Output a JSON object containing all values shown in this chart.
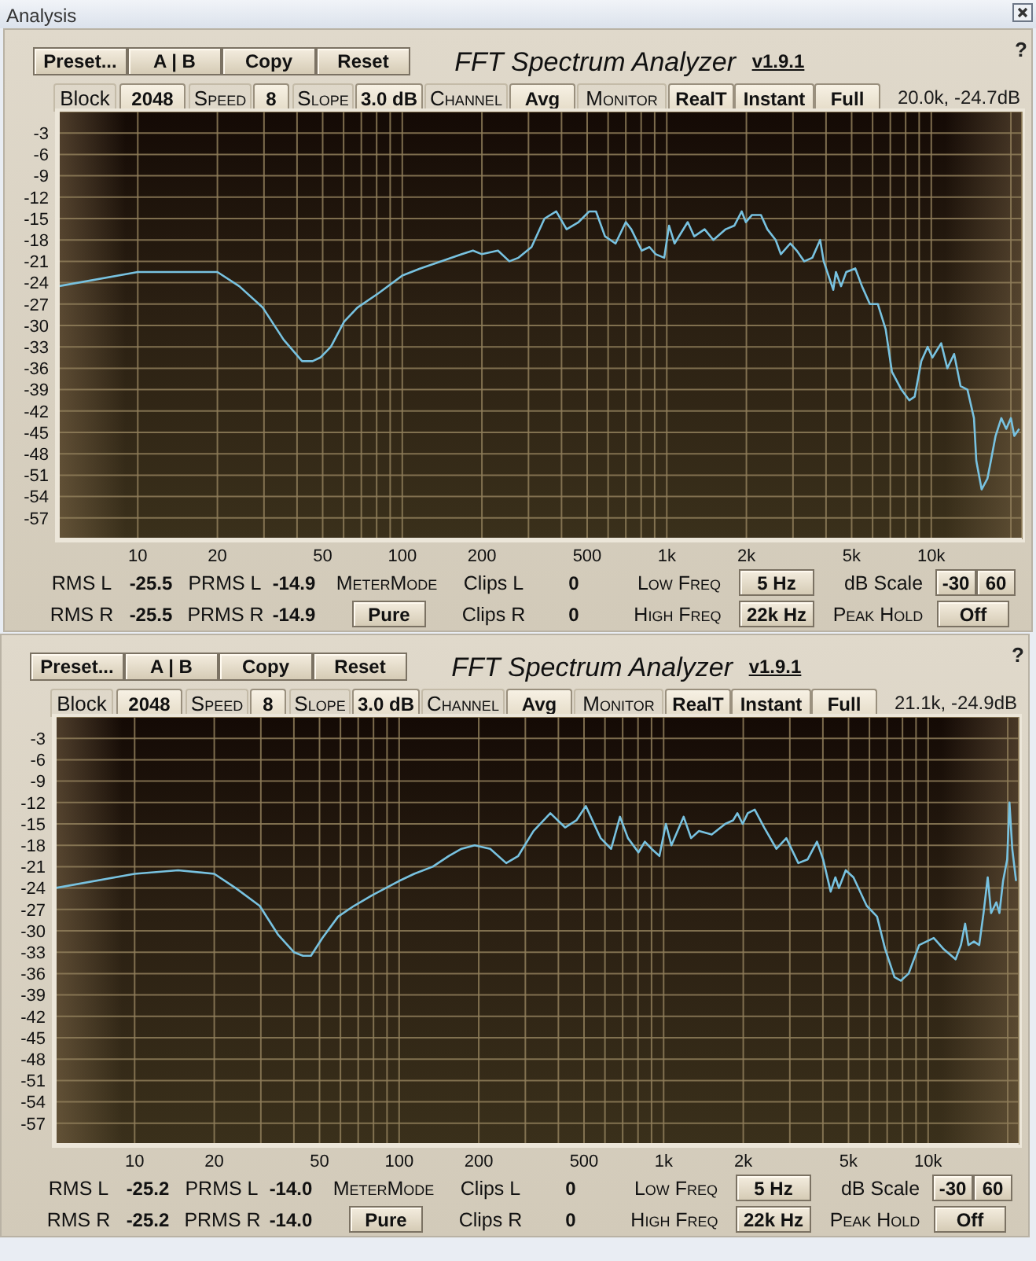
{
  "chart_data": [
    {
      "type": "line",
      "title": "FFT Spectrum Analyzer",
      "color": "#78c2e0",
      "log": "x",
      "grid": true,
      "xlim": [
        5,
        22000
      ],
      "ylim": [
        -60,
        0
      ],
      "xticks": [
        10,
        20,
        {
          "value": 30,
          "label": null
        },
        {
          "value": 40,
          "label": null
        },
        50,
        {
          "value": 60,
          "label": null
        },
        {
          "value": 70,
          "label": null
        },
        {
          "value": 80,
          "label": null
        },
        {
          "value": 90,
          "label": null
        },
        100,
        200,
        {
          "value": 300,
          "label": null
        },
        {
          "value": 400,
          "label": null
        },
        500,
        {
          "value": 600,
          "label": null
        },
        {
          "value": 700,
          "label": null
        },
        {
          "value": 800,
          "label": null
        },
        {
          "value": 900,
          "label": null
        },
        {
          "value": 1000,
          "label": "1k"
        },
        {
          "value": 2000,
          "label": "2k"
        },
        {
          "value": 3000,
          "label": null
        },
        {
          "value": 4000,
          "label": null
        },
        {
          "value": 5000,
          "label": "5k"
        },
        {
          "value": 6000,
          "label": null
        },
        {
          "value": 7000,
          "label": null
        },
        {
          "value": 8000,
          "label": null
        },
        {
          "value": 9000,
          "label": null
        },
        {
          "value": 10000,
          "label": "10k"
        },
        {
          "value": 20000,
          "label": null
        }
      ],
      "yticks": [
        -3,
        -6,
        -9,
        -12,
        -15,
        -18,
        -21,
        -24,
        -27,
        -30,
        -33,
        -36,
        -39,
        -42,
        -45,
        -48,
        -51,
        -54,
        -57
      ],
      "x": [
        5,
        10,
        14.3,
        20,
        24.2,
        29.7,
        35.6,
        41.8,
        45.8,
        49,
        53.7,
        60.2,
        67.6,
        81.1,
        100,
        117,
        140,
        168,
        185,
        200,
        230,
        254,
        275,
        308,
        345,
        382,
        418,
        464,
        509,
        540,
        584,
        640,
        700,
        734,
        804,
        860,
        908,
        978,
        1020,
        1070,
        1200,
        1270,
        1390,
        1500,
        1670,
        1800,
        1920,
        1990,
        2100,
        2270,
        2400,
        2580,
        2700,
        2930,
        3100,
        3310,
        3550,
        3800,
        3920,
        4260,
        4360,
        4560,
        4770,
        5160,
        5470,
        5860,
        6280,
        6720,
        7100,
        7710,
        8260,
        8650,
        9170,
        9690,
        10100,
        10900,
        11500,
        12200,
        12900,
        13700,
        14500,
        14800,
        15500,
        16300,
        16800,
        17500,
        18400,
        19200,
        20000,
        20600,
        21500
      ],
      "values": [
        -24.5,
        -22.5,
        -22.5,
        -22.5,
        -24.5,
        -27.5,
        -32,
        -35,
        -35,
        -34.5,
        -33,
        -29.5,
        -27.5,
        -25.5,
        -23,
        -22,
        -21,
        -20,
        -19.5,
        -20,
        -19.5,
        -21,
        -20.5,
        -19,
        -15,
        -14,
        -16.5,
        -15.5,
        -14,
        -14,
        -17.5,
        -18.5,
        -15.5,
        -16.5,
        -19.5,
        -19,
        -20,
        -20.5,
        -16,
        -18.5,
        -15.5,
        -17.5,
        -16.5,
        -18,
        -16.5,
        -16,
        -14,
        -15.5,
        -14.5,
        -14.5,
        -16.5,
        -18,
        -20,
        -18.5,
        -19.5,
        -21,
        -20.5,
        -18,
        -21,
        -25,
        -22.5,
        -24.5,
        -22.5,
        -22,
        -24.5,
        -27,
        -27,
        -30.5,
        -36.5,
        -39,
        -40.5,
        -40,
        -35,
        -33,
        -34.5,
        -32.5,
        -36,
        -34,
        -38.5,
        -39,
        -43,
        -49,
        -53,
        -51.5,
        -49,
        -45.5,
        -43,
        -44.5,
        -43,
        -45.5,
        -44.5
      ],
      "annotations": [
        "Preset...",
        "A | B",
        "Copy",
        "Reset",
        "v1.9.1",
        "?",
        "Block",
        "2048",
        "Speed",
        "8",
        "Slope",
        "3.0 dB",
        "Channel",
        "Avg",
        "Monitor",
        "RealT",
        "Instant",
        "Full",
        "20.0k, -24.7dB",
        "RMS L",
        "-25.5",
        "PRMS L",
        "-14.9",
        "MeterMode",
        "Clips L",
        "0",
        "Low Freq",
        "5 Hz",
        "dB Scale",
        "-30",
        "60",
        "RMS R",
        "-25.5",
        "PRMS R",
        "-14.9",
        "Pure",
        "Clips R",
        "0",
        "High Freq",
        "22k Hz",
        "Peak Hold",
        "Off",
        "Analysis"
      ]
    },
    {
      "type": "line",
      "title": "FFT Spectrum Analyzer",
      "color": "#78c2e0",
      "log": "x",
      "grid": true,
      "xlim": [
        5,
        22000
      ],
      "ylim": [
        -60,
        0
      ],
      "xticks": [
        10,
        20,
        {
          "value": 30,
          "label": null
        },
        {
          "value": 40,
          "label": null
        },
        50,
        {
          "value": 60,
          "label": null
        },
        {
          "value": 70,
          "label": null
        },
        {
          "value": 80,
          "label": null
        },
        {
          "value": 90,
          "label": null
        },
        100,
        200,
        {
          "value": 300,
          "label": null
        },
        {
          "value": 400,
          "label": null
        },
        500,
        {
          "value": 600,
          "label": null
        },
        {
          "value": 700,
          "label": null
        },
        {
          "value": 800,
          "label": null
        },
        {
          "value": 900,
          "label": null
        },
        {
          "value": 1000,
          "label": "1k"
        },
        {
          "value": 2000,
          "label": "2k"
        },
        {
          "value": 3000,
          "label": null
        },
        {
          "value": 4000,
          "label": null
        },
        {
          "value": 5000,
          "label": "5k"
        },
        {
          "value": 6000,
          "label": null
        },
        {
          "value": 7000,
          "label": null
        },
        {
          "value": 8000,
          "label": null
        },
        {
          "value": 9000,
          "label": null
        },
        {
          "value": 10000,
          "label": "10k"
        },
        {
          "value": 20000,
          "label": null
        }
      ],
      "yticks": [
        -3,
        -6,
        -9,
        -12,
        -15,
        -18,
        -21,
        -24,
        -27,
        -30,
        -33,
        -36,
        -39,
        -42,
        -45,
        -48,
        -51,
        -54,
        -57
      ],
      "x": [
        5,
        10,
        14.6,
        20,
        24.1,
        29.7,
        34.8,
        40,
        43.3,
        46.4,
        51.3,
        58.8,
        67.5,
        79.2,
        100,
        114,
        134,
        154,
        172,
        193,
        221,
        254,
        282,
        322,
        373,
        424,
        468,
        508,
        578,
        633,
        684,
        733,
        803,
        849,
        900,
        964,
        1020,
        1070,
        1190,
        1270,
        1360,
        1520,
        1710,
        1830,
        1900,
        1990,
        2080,
        2210,
        2400,
        2670,
        2910,
        3230,
        3500,
        3800,
        4010,
        4280,
        4460,
        4600,
        4880,
        5220,
        5860,
        6410,
        6870,
        7460,
        7880,
        8440,
        9250,
        10500,
        11400,
        12700,
        13300,
        13800,
        14200,
        14900,
        15600,
        16200,
        16800,
        17300,
        18100,
        18600,
        19200,
        19900,
        20300,
        20800,
        21500
      ],
      "values": [
        -24,
        -22,
        -21.5,
        -22,
        -24,
        -26.5,
        -30.5,
        -33,
        -33.5,
        -33.5,
        -31,
        -28,
        -26.5,
        -25,
        -23,
        -22,
        -21,
        -19.5,
        -18.5,
        -18,
        -18.5,
        -20.5,
        -19.5,
        -16,
        -13.5,
        -15.5,
        -14.5,
        -12.5,
        -17,
        -18.5,
        -14,
        -17,
        -19,
        -17.5,
        -18.5,
        -19.5,
        -15,
        -18,
        -14,
        -17,
        -16,
        -16.5,
        -15,
        -14.5,
        -13.5,
        -15,
        -13.5,
        -13,
        -15.5,
        -18.5,
        -17,
        -20.5,
        -20,
        -17.5,
        -20,
        -24.5,
        -22.5,
        -24,
        -21.5,
        -22.5,
        -26.5,
        -28,
        -32.5,
        -36.5,
        -37,
        -36,
        -32,
        -31,
        -32.5,
        -34,
        -32,
        -29,
        -32,
        -31.5,
        -32,
        -27.5,
        -22.5,
        -27.5,
        -26,
        -27.5,
        -23,
        -20,
        -12,
        -18.5,
        -23
      ],
      "annotations": [
        "Preset...",
        "A | B",
        "Copy",
        "Reset",
        "v1.9.1",
        "?",
        "Block",
        "2048",
        "Speed",
        "8",
        "Slope",
        "3.0 dB",
        "Channel",
        "Avg",
        "Monitor",
        "RealT",
        "Instant",
        "Full",
        "21.1k, -24.9dB",
        "RMS L",
        "-25.2",
        "PRMS L",
        "-14.0",
        "MeterMode",
        "Clips L",
        "0",
        "Low Freq",
        "5 Hz",
        "dB Scale",
        "-30",
        "60",
        "RMS R",
        "-25.2",
        "PRMS R",
        "-14.0",
        "Pure",
        "Clips R",
        "0",
        "High Freq",
        "22k Hz",
        "Peak Hold",
        "Off"
      ]
    }
  ]
}
